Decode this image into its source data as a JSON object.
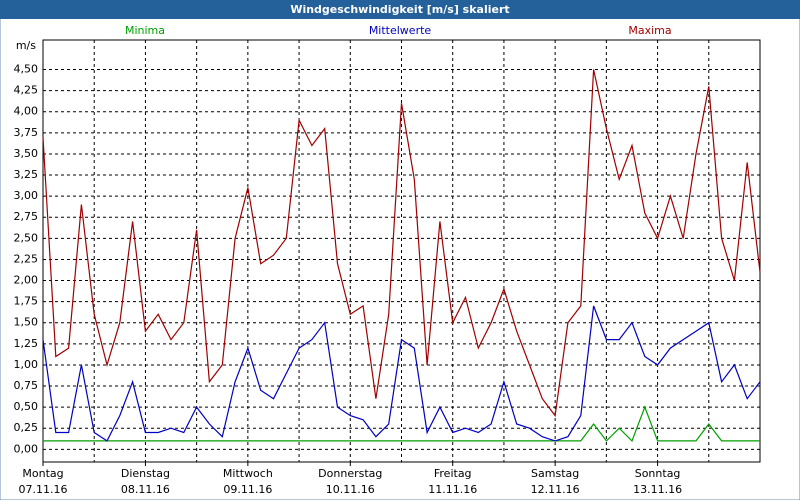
{
  "chart_data": {
    "type": "line",
    "title": "Windgeschwindigkeit [m/s] skaliert",
    "y_label": "m/s",
    "x": [
      0,
      3,
      6,
      9,
      12,
      15,
      18,
      21,
      24,
      27,
      30,
      33,
      36,
      39,
      42,
      45,
      48,
      51,
      54,
      57,
      60,
      63,
      66,
      69,
      72,
      75,
      78,
      81,
      84,
      87,
      90,
      93,
      96,
      99,
      102,
      105,
      108,
      111,
      114,
      117,
      120,
      123,
      126,
      129,
      132,
      135,
      138,
      141,
      144,
      147,
      150,
      153,
      156,
      159,
      162,
      165,
      168
    ],
    "xlim": [
      0,
      168
    ],
    "xticks": [
      {
        "value": 0,
        "label": "Montag"
      },
      {
        "value": 24,
        "label": "Dienstag"
      },
      {
        "value": 48,
        "label": "Mittwoch"
      },
      {
        "value": 72,
        "label": "Donnerstag"
      },
      {
        "value": 96,
        "label": "Freitag"
      },
      {
        "value": 120,
        "label": "Samstag"
      },
      {
        "value": 144,
        "label": "Sonntag"
      }
    ],
    "xtick_dates": [
      "07.11.16",
      "08.11.16",
      "09.11.16",
      "10.11.16",
      "11.11.16",
      "12.11.16",
      "13.11.16"
    ],
    "xgrid": [
      12,
      24,
      36,
      48,
      60,
      72,
      84,
      96,
      108,
      120,
      132,
      144,
      156
    ],
    "ylim": [
      -0.15,
      4.85
    ],
    "yticks": [
      {
        "value": 0,
        "label": "0,00"
      },
      {
        "value": 0.25,
        "label": "0,25"
      },
      {
        "value": 0.5,
        "label": "0,50"
      },
      {
        "value": 0.75,
        "label": "0,75"
      },
      {
        "value": 1,
        "label": "1,00"
      },
      {
        "value": 1.25,
        "label": "1,25"
      },
      {
        "value": 1.5,
        "label": "1,50"
      },
      {
        "value": 1.75,
        "label": "1,75"
      },
      {
        "value": 2,
        "label": "2,00"
      },
      {
        "value": 2.25,
        "label": "2,25"
      },
      {
        "value": 2.5,
        "label": "2,50"
      },
      {
        "value": 2.75,
        "label": "2,75"
      },
      {
        "value": 3,
        "label": "3,00"
      },
      {
        "value": 3.25,
        "label": "3,25"
      },
      {
        "value": 3.5,
        "label": "3,50"
      },
      {
        "value": 3.75,
        "label": "3,75"
      },
      {
        "value": 4,
        "label": "4,00"
      },
      {
        "value": 4.25,
        "label": "4,25"
      },
      {
        "value": 4.5,
        "label": "4,50"
      }
    ],
    "grid": true,
    "series": [
      {
        "name": "Minima",
        "color": "#00a000",
        "values": [
          0.1,
          0.1,
          0.1,
          0.1,
          0.1,
          0.1,
          0.1,
          0.1,
          0.1,
          0.1,
          0.1,
          0.1,
          0.1,
          0.1,
          0.1,
          0.1,
          0.1,
          0.1,
          0.1,
          0.1,
          0.1,
          0.1,
          0.1,
          0.1,
          0.1,
          0.1,
          0.1,
          0.1,
          0.1,
          0.1,
          0.1,
          0.1,
          0.1,
          0.1,
          0.1,
          0.1,
          0.1,
          0.1,
          0.1,
          0.1,
          0.1,
          0.1,
          0.1,
          0.3,
          0.1,
          0.25,
          0.1,
          0.5,
          0.1,
          0.1,
          0.1,
          0.1,
          0.3,
          0.1,
          0.1,
          0.1,
          0.1
        ]
      },
      {
        "name": "Mittelwerte",
        "color": "#0000c0",
        "values": [
          1.3,
          0.2,
          0.2,
          1.0,
          0.2,
          0.1,
          0.4,
          0.8,
          0.2,
          0.2,
          0.25,
          0.2,
          0.5,
          0.3,
          0.15,
          0.8,
          1.2,
          0.7,
          0.6,
          0.9,
          1.2,
          1.3,
          1.5,
          0.5,
          0.4,
          0.35,
          0.15,
          0.3,
          1.3,
          1.2,
          0.2,
          0.5,
          0.2,
          0.25,
          0.2,
          0.3,
          0.8,
          0.3,
          0.25,
          0.15,
          0.1,
          0.15,
          0.4,
          1.7,
          1.3,
          1.3,
          1.5,
          1.1,
          1.0,
          1.2,
          1.3,
          1.4,
          1.5,
          0.8,
          1.0,
          0.6,
          0.8
        ]
      },
      {
        "name": "Maxima",
        "color": "#a00000",
        "values": [
          3.7,
          1.1,
          1.2,
          2.9,
          1.6,
          1.0,
          1.5,
          2.7,
          1.4,
          1.6,
          1.3,
          1.5,
          2.6,
          0.8,
          1.0,
          2.5,
          3.1,
          2.2,
          2.3,
          2.5,
          3.9,
          3.6,
          3.8,
          2.2,
          1.6,
          1.7,
          0.6,
          1.6,
          4.1,
          3.2,
          1.0,
          2.7,
          1.5,
          1.8,
          1.2,
          1.5,
          1.9,
          1.4,
          1.0,
          0.6,
          0.4,
          1.5,
          1.7,
          4.5,
          3.8,
          3.2,
          3.6,
          2.8,
          2.5,
          3.0,
          2.5,
          3.5,
          4.3,
          2.5,
          2.0,
          3.4,
          2.1
        ]
      }
    ]
  }
}
